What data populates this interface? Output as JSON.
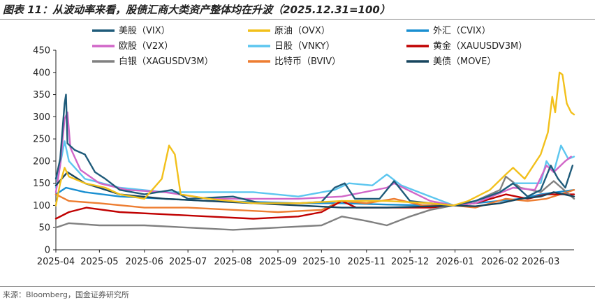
{
  "title": "图表 11：从波动率来看，股债汇商大类资产整体均在升波（2025.12.31=100）",
  "source": "来源：Bloomberg，国金证券研究所",
  "chart_data": {
    "type": "line",
    "title": "图表 11：从波动率来看，股债汇商大类资产整体均在升波（2025.12.31=100）",
    "xlabel": "",
    "ylabel": "",
    "ylim": [
      0,
      450
    ],
    "yticks": [
      0,
      50,
      100,
      150,
      200,
      250,
      300,
      350,
      400,
      450
    ],
    "xlim": [
      "2025-04-01",
      "2026-03-24"
    ],
    "xticks": [
      "2025-04",
      "2025-05",
      "2025-06",
      "2025-07",
      "2025-08",
      "2025-09",
      "2025-10",
      "2025-11",
      "2025-12",
      "2026-01",
      "2026-02",
      "2026-03"
    ],
    "grid": false,
    "legend_position": "top",
    "series": [
      {
        "name": "美股（VIX）",
        "color": "#1f5b7a",
        "points": [
          [
            "2025-04-01",
            160
          ],
          [
            "2025-04-04",
            205
          ],
          [
            "2025-04-07",
            330
          ],
          [
            "2025-04-08",
            350
          ],
          [
            "2025-04-09",
            240
          ],
          [
            "2025-04-14",
            225
          ],
          [
            "2025-04-21",
            215
          ],
          [
            "2025-04-28",
            175
          ],
          [
            "2025-05-05",
            160
          ],
          [
            "2025-05-15",
            135
          ],
          [
            "2025-06-01",
            125
          ],
          [
            "2025-06-20",
            135
          ],
          [
            "2025-07-01",
            115
          ],
          [
            "2025-08-01",
            120
          ],
          [
            "2025-08-20",
            105
          ],
          [
            "2025-09-15",
            105
          ],
          [
            "2025-10-01",
            108
          ],
          [
            "2025-10-10",
            140
          ],
          [
            "2025-10-17",
            150
          ],
          [
            "2025-10-24",
            115
          ],
          [
            "2025-11-10",
            115
          ],
          [
            "2025-11-20",
            155
          ],
          [
            "2025-12-01",
            110
          ],
          [
            "2025-12-15",
            105
          ],
          [
            "2025-12-31",
            100
          ],
          [
            "2026-01-15",
            110
          ],
          [
            "2026-02-01",
            130
          ],
          [
            "2026-02-10",
            150
          ],
          [
            "2026-02-20",
            120
          ],
          [
            "2026-03-01",
            135
          ],
          [
            "2026-03-08",
            190
          ],
          [
            "2026-03-13",
            160
          ],
          [
            "2026-03-18",
            140
          ],
          [
            "2026-03-23",
            190
          ]
        ]
      },
      {
        "name": "原油（OVX）",
        "color": "#f2c01b",
        "points": [
          [
            "2025-04-01",
            100
          ],
          [
            "2025-04-04",
            150
          ],
          [
            "2025-04-07",
            185
          ],
          [
            "2025-04-10",
            165
          ],
          [
            "2025-04-21",
            150
          ],
          [
            "2025-05-05",
            140
          ],
          [
            "2025-05-15",
            125
          ],
          [
            "2025-06-01",
            115
          ],
          [
            "2025-06-13",
            160
          ],
          [
            "2025-06-18",
            235
          ],
          [
            "2025-06-22",
            215
          ],
          [
            "2025-06-26",
            125
          ],
          [
            "2025-07-15",
            115
          ],
          [
            "2025-08-15",
            105
          ],
          [
            "2025-09-15",
            105
          ],
          [
            "2025-10-15",
            110
          ],
          [
            "2025-11-15",
            110
          ],
          [
            "2025-12-15",
            105
          ],
          [
            "2025-12-31",
            100
          ],
          [
            "2026-01-10",
            110
          ],
          [
            "2026-01-25",
            135
          ],
          [
            "2026-02-05",
            170
          ],
          [
            "2026-02-10",
            185
          ],
          [
            "2026-02-18",
            160
          ],
          [
            "2026-03-01",
            215
          ],
          [
            "2026-03-06",
            265
          ],
          [
            "2026-03-09",
            345
          ],
          [
            "2026-03-11",
            310
          ],
          [
            "2026-03-14",
            400
          ],
          [
            "2026-03-16",
            395
          ],
          [
            "2026-03-19",
            330
          ],
          [
            "2026-03-22",
            310
          ],
          [
            "2026-03-24",
            305
          ]
        ]
      },
      {
        "name": "外汇（CVIX）",
        "color": "#1a8fd1",
        "points": [
          [
            "2025-04-01",
            125
          ],
          [
            "2025-04-08",
            140
          ],
          [
            "2025-04-21",
            130
          ],
          [
            "2025-05-15",
            120
          ],
          [
            "2025-06-15",
            115
          ],
          [
            "2025-07-15",
            110
          ],
          [
            "2025-08-15",
            108
          ],
          [
            "2025-09-15",
            105
          ],
          [
            "2025-10-15",
            105
          ],
          [
            "2025-11-15",
            102
          ],
          [
            "2025-12-15",
            100
          ],
          [
            "2025-12-31",
            100
          ],
          [
            "2026-01-15",
            105
          ],
          [
            "2026-02-15",
            115
          ],
          [
            "2026-03-01",
            125
          ],
          [
            "2026-03-24",
            135
          ]
        ]
      },
      {
        "name": "欧股（V2X）",
        "color": "#d166c8",
        "points": [
          [
            "2025-04-01",
            130
          ],
          [
            "2025-04-04",
            190
          ],
          [
            "2025-04-07",
            295
          ],
          [
            "2025-04-09",
            310
          ],
          [
            "2025-04-11",
            230
          ],
          [
            "2025-04-18",
            180
          ],
          [
            "2025-05-01",
            150
          ],
          [
            "2025-05-20",
            135
          ],
          [
            "2025-06-15",
            130
          ],
          [
            "2025-07-15",
            115
          ],
          [
            "2025-08-15",
            115
          ],
          [
            "2025-09-15",
            115
          ],
          [
            "2025-10-15",
            120
          ],
          [
            "2025-11-15",
            140
          ],
          [
            "2025-11-20",
            150
          ],
          [
            "2025-12-15",
            110
          ],
          [
            "2025-12-31",
            100
          ],
          [
            "2026-01-15",
            105
          ],
          [
            "2026-02-10",
            140
          ],
          [
            "2026-02-25",
            135
          ],
          [
            "2026-03-05",
            190
          ],
          [
            "2026-03-10",
            175
          ],
          [
            "2026-03-18",
            200
          ],
          [
            "2026-03-22",
            210
          ]
        ]
      },
      {
        "name": "日股（VNKY）",
        "color": "#5cc6ef",
        "points": [
          [
            "2025-04-01",
            140
          ],
          [
            "2025-04-07",
            245
          ],
          [
            "2025-04-10",
            200
          ],
          [
            "2025-04-21",
            160
          ],
          [
            "2025-05-15",
            140
          ],
          [
            "2025-06-15",
            130
          ],
          [
            "2025-07-15",
            130
          ],
          [
            "2025-08-15",
            130
          ],
          [
            "2025-09-15",
            120
          ],
          [
            "2025-10-10",
            135
          ],
          [
            "2025-10-20",
            150
          ],
          [
            "2025-11-05",
            145
          ],
          [
            "2025-11-15",
            170
          ],
          [
            "2025-11-25",
            145
          ],
          [
            "2025-12-15",
            120
          ],
          [
            "2025-12-31",
            100
          ],
          [
            "2026-01-15",
            110
          ],
          [
            "2026-02-01",
            130
          ],
          [
            "2026-02-10",
            150
          ],
          [
            "2026-03-01",
            150
          ],
          [
            "2026-03-05",
            200
          ],
          [
            "2026-03-10",
            175
          ],
          [
            "2026-03-15",
            235
          ],
          [
            "2026-03-20",
            205
          ],
          [
            "2026-03-24",
            210
          ]
        ]
      },
      {
        "name": "黄金（XAUUSDV3M）",
        "color": "#c00000",
        "points": [
          [
            "2025-04-01",
            70
          ],
          [
            "2025-04-10",
            85
          ],
          [
            "2025-04-22",
            95
          ],
          [
            "2025-05-15",
            85
          ],
          [
            "2025-06-15",
            80
          ],
          [
            "2025-07-15",
            75
          ],
          [
            "2025-08-15",
            70
          ],
          [
            "2025-09-15",
            75
          ],
          [
            "2025-10-01",
            85
          ],
          [
            "2025-10-15",
            110
          ],
          [
            "2025-10-25",
            95
          ],
          [
            "2025-11-15",
            95
          ],
          [
            "2025-12-15",
            95
          ],
          [
            "2025-12-31",
            100
          ],
          [
            "2026-01-15",
            105
          ],
          [
            "2026-02-05",
            125
          ],
          [
            "2026-02-20",
            115
          ],
          [
            "2026-03-05",
            125
          ],
          [
            "2026-03-24",
            125
          ]
        ]
      },
      {
        "name": "白银（XAGUSDV3M）",
        "color": "#808080",
        "points": [
          [
            "2025-04-01",
            50
          ],
          [
            "2025-04-10",
            60
          ],
          [
            "2025-05-01",
            55
          ],
          [
            "2025-06-01",
            55
          ],
          [
            "2025-07-01",
            50
          ],
          [
            "2025-08-01",
            45
          ],
          [
            "2025-09-01",
            50
          ],
          [
            "2025-10-01",
            55
          ],
          [
            "2025-10-15",
            75
          ],
          [
            "2025-11-01",
            65
          ],
          [
            "2025-11-15",
            55
          ],
          [
            "2025-12-01",
            75
          ],
          [
            "2025-12-15",
            90
          ],
          [
            "2025-12-31",
            100
          ],
          [
            "2026-01-15",
            110
          ],
          [
            "2026-02-01",
            135
          ],
          [
            "2026-02-05",
            165
          ],
          [
            "2026-02-15",
            140
          ],
          [
            "2026-03-01",
            130
          ],
          [
            "2026-03-10",
            155
          ],
          [
            "2026-03-24",
            115
          ]
        ]
      },
      {
        "name": "比特币（BVIV）",
        "color": "#ed7d31",
        "points": [
          [
            "2025-04-01",
            125
          ],
          [
            "2025-04-10",
            110
          ],
          [
            "2025-05-01",
            105
          ],
          [
            "2025-06-01",
            95
          ],
          [
            "2025-07-01",
            95
          ],
          [
            "2025-08-01",
            90
          ],
          [
            "2025-09-01",
            85
          ],
          [
            "2025-10-01",
            90
          ],
          [
            "2025-10-15",
            110
          ],
          [
            "2025-11-01",
            105
          ],
          [
            "2025-11-20",
            115
          ],
          [
            "2025-12-10",
            100
          ],
          [
            "2025-12-31",
            100
          ],
          [
            "2026-01-15",
            95
          ],
          [
            "2026-02-05",
            115
          ],
          [
            "2026-02-20",
            110
          ],
          [
            "2026-03-05",
            115
          ],
          [
            "2026-03-24",
            135
          ]
        ]
      },
      {
        "name": "美债（MOVE）",
        "color": "#17455e",
        "points": [
          [
            "2025-04-01",
            145
          ],
          [
            "2025-04-09",
            175
          ],
          [
            "2025-04-21",
            150
          ],
          [
            "2025-05-15",
            125
          ],
          [
            "2025-06-15",
            115
          ],
          [
            "2025-07-15",
            110
          ],
          [
            "2025-08-15",
            105
          ],
          [
            "2025-09-15",
            100
          ],
          [
            "2025-10-15",
            95
          ],
          [
            "2025-11-15",
            95
          ],
          [
            "2025-12-15",
            98
          ],
          [
            "2025-12-31",
            100
          ],
          [
            "2026-01-15",
            98
          ],
          [
            "2026-02-01",
            105
          ],
          [
            "2026-02-15",
            115
          ],
          [
            "2026-03-01",
            120
          ],
          [
            "2026-03-10",
            130
          ],
          [
            "2026-03-24",
            120
          ]
        ]
      }
    ]
  }
}
